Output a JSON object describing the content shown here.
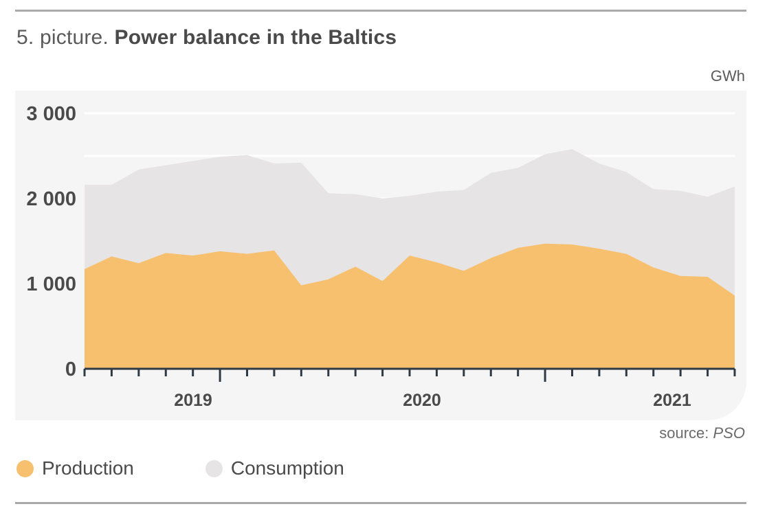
{
  "header": {
    "title_prefix": "5. picture.",
    "title_main": "Power balance in the Baltics",
    "unit": "GWh"
  },
  "source": {
    "label": "source:",
    "name": "PSO"
  },
  "legend": [
    {
      "label": "Production",
      "color": "#f7c06f"
    },
    {
      "label": "Consumption",
      "color": "#e6e4e5"
    }
  ],
  "chart_data": {
    "type": "area",
    "unit": "GWh",
    "ylim": [
      0,
      3000
    ],
    "yticks": [
      0,
      1000,
      2000,
      3000
    ],
    "ytick_labels": [
      "0",
      "1 000",
      "2 000",
      "3 000"
    ],
    "x_labels": [
      "2019",
      "2020",
      "2021"
    ],
    "grid": true,
    "legend_position": "bottom-left",
    "x": [
      "2018-08",
      "2018-09",
      "2018-10",
      "2018-11",
      "2018-12",
      "2019-01",
      "2019-02",
      "2019-03",
      "2019-04",
      "2019-05",
      "2019-06",
      "2019-07",
      "2019-08",
      "2019-09",
      "2019-10",
      "2019-11",
      "2019-12",
      "2020-01",
      "2020-02",
      "2020-03",
      "2020-04",
      "2020-05",
      "2020-06",
      "2020-07",
      "2020-08",
      "2020-09",
      "2020-10",
      "2020-11",
      "2020-12",
      "2021-01",
      "2021-02",
      "2021-03",
      "2021-04",
      "2021-05",
      "2021-06",
      "2021-07",
      "2021-08",
      "2021-09",
      "2021-10",
      "2021-11",
      "2021-12",
      "2022-01",
      "2022-02",
      "2022-03",
      "2022-04",
      "2022-05",
      "2022-06",
      "2022-07",
      "2022-08",
      "2022-09",
      "2022-10"
    ],
    "series": [
      {
        "name": "Consumption",
        "color": "#e6e4e5",
        "values": [
          2160,
          2160,
          2340,
          2390,
          2440,
          2490,
          2510,
          2410,
          2420,
          2060,
          2050,
          2000,
          2030,
          2080,
          2100,
          2300,
          2360,
          2520,
          2580,
          2410,
          2310,
          2110,
          2090,
          2020,
          2140,
          2170,
          2200,
          2220,
          2250,
          2280,
          2300,
          2330,
          2350,
          2380,
          2400,
          2410,
          2420,
          2430,
          2440,
          2450,
          2460,
          2470,
          2480,
          2490,
          2500,
          2500,
          2500,
          2500,
          2500,
          2500,
          2500
        ]
      },
      {
        "name": "Production",
        "color": "#f7c06f",
        "values": [
          1170,
          1320,
          1240,
          1360,
          1330,
          1380,
          1350,
          1390,
          980,
          1050,
          1200,
          1030,
          1330,
          1250,
          1150,
          1300,
          1420,
          1470,
          1460,
          1410,
          1350,
          1190,
          1090,
          1080,
          860,
          860,
          860,
          860,
          860,
          860,
          860,
          860,
          860,
          860,
          860,
          860,
          860,
          860,
          860,
          860,
          860,
          860,
          860,
          860,
          860,
          860,
          860,
          860,
          860,
          860,
          860
        ]
      }
    ]
  }
}
